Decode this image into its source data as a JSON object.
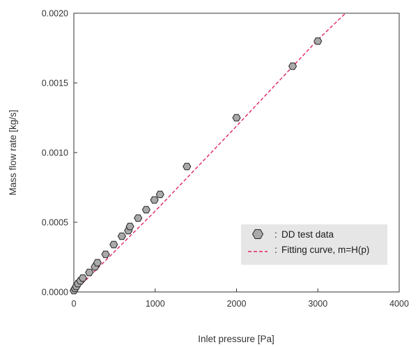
{
  "chart_data": {
    "type": "scatter",
    "xlabel": "Inlet pressure [Pa]",
    "ylabel": "Mass flow rate [kg/s]",
    "xlim": [
      0,
      4000
    ],
    "ylim": [
      0,
      0.002
    ],
    "x_ticks": [
      "0",
      "1000",
      "2000",
      "3000",
      "4000"
    ],
    "y_ticks": [
      "0.0000",
      "0.0005",
      "0.0010",
      "0.0015",
      "0.0020"
    ],
    "x_tick_values": [
      0,
      1000,
      2000,
      3000,
      4000
    ],
    "y_tick_values": [
      0,
      0.0005,
      0.001,
      0.0015,
      0.002
    ],
    "grid": false,
    "legend_position": "bottom-right",
    "series": [
      {
        "name": "DD test data",
        "label_prefix": ":",
        "marker": "hexagon",
        "color": "#a9a9a9",
        "edge_color": "#222222",
        "x": [
          0,
          15,
          30,
          50,
          80,
          110,
          190,
          260,
          290,
          390,
          490,
          590,
          670,
          690,
          790,
          890,
          990,
          1060,
          1390,
          2000,
          2690,
          3000
        ],
        "y": [
          1e-05,
          2.5e-05,
          4e-05,
          6e-05,
          8e-05,
          0.0001,
          0.00014,
          0.00018,
          0.00021,
          0.00027,
          0.00034,
          0.0004,
          0.00044,
          0.00047,
          0.00053,
          0.00059,
          0.00066,
          0.0007,
          0.0009,
          0.00125,
          0.00162,
          0.0018
        ]
      },
      {
        "name": "Fitting curve, m=H(p)",
        "label_prefix": ":",
        "style": "dashed-line",
        "color": "#e0245e",
        "x": [
          0,
          1000,
          2000,
          3000,
          3340
        ],
        "y": [
          0,
          0.00058,
          0.00119,
          0.00181,
          0.002
        ]
      }
    ]
  }
}
